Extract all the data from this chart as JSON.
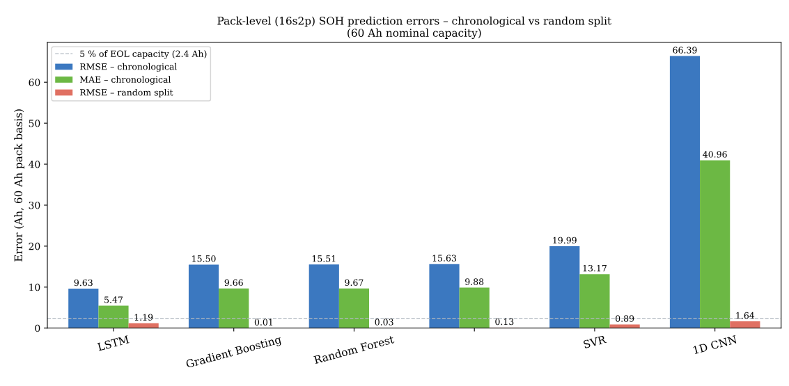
{
  "chart_data": {
    "type": "bar",
    "title": "Pack-level (16s2p) SOH prediction errors – chronological vs random split\n(60 Ah nominal capacity)",
    "ylabel": "Error (Ah, 60 Ah pack basis)",
    "categories": [
      "LSTM",
      "Gradient Boosting",
      "Random Forest",
      null,
      "SVR",
      "1D CNN"
    ],
    "series": [
      {
        "name": "RMSE – chronological",
        "color": "#3b78c0",
        "values": [
          9.63,
          15.5,
          15.51,
          15.63,
          19.99,
          66.39
        ],
        "value_labels": [
          "9.63",
          "15.50",
          "15.51",
          "15.63",
          "19.99",
          "66.39"
        ]
      },
      {
        "name": "MAE – chronological",
        "color": "#6cb844",
        "values": [
          5.47,
          9.66,
          9.67,
          9.88,
          13.17,
          40.96
        ],
        "value_labels": [
          "5.47",
          "9.66",
          "9.67",
          "9.88",
          "13.17",
          "40.96"
        ]
      },
      {
        "name": "RMSE – random split",
        "color": "#e07062",
        "values": [
          1.19,
          0.01,
          0.03,
          0.13,
          0.89,
          1.64
        ],
        "value_labels": [
          "1.19",
          "0.01",
          "0.03",
          "0.13",
          "0.89",
          "1.64"
        ]
      }
    ],
    "ref_lines": [
      {
        "axis": "y",
        "value": 2.4,
        "label": "5 % of EOL capacity (2.4 Ah)",
        "color": "#b0b8c0",
        "line_style": "dashed"
      }
    ],
    "ylim": [
      0,
      69.7
    ],
    "yticks": [
      0,
      10,
      20,
      30,
      40,
      50,
      60
    ],
    "legend": "top left",
    "grid": false
  }
}
